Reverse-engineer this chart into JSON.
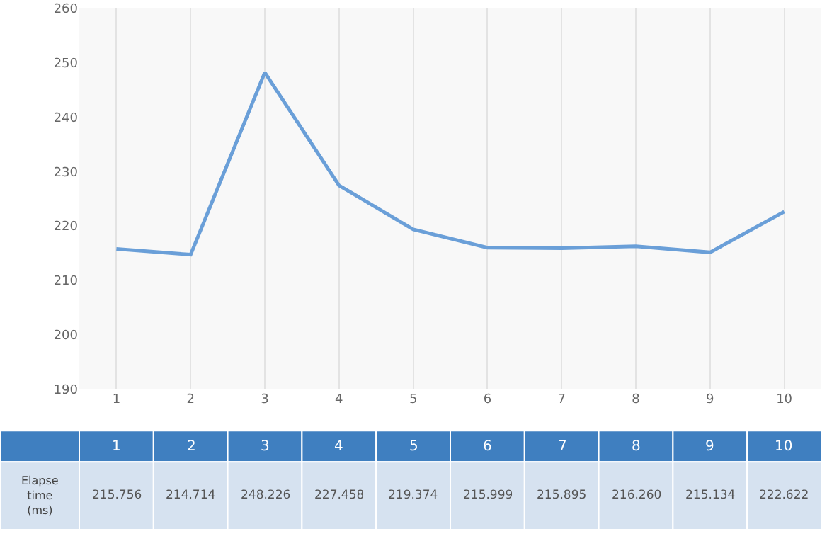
{
  "chart_data": {
    "type": "line",
    "categories": [
      "1",
      "2",
      "3",
      "4",
      "5",
      "6",
      "7",
      "8",
      "9",
      "10"
    ],
    "series": [
      {
        "name": "Elapse time (ms)",
        "color": "#6a9fd8",
        "values": [
          215.756,
          214.714,
          248.226,
          227.458,
          219.374,
          215.999,
          215.895,
          216.26,
          215.134,
          222.622
        ],
        "value_labels": [
          "215.756",
          "214.714",
          "248.226",
          "227.458",
          "219.374",
          "215.999",
          "215.895",
          "216.260",
          "215.134",
          "222.622"
        ]
      }
    ],
    "ylim": [
      190,
      260
    ],
    "yticks": [
      190,
      200,
      210,
      220,
      230,
      240,
      250,
      260
    ],
    "grid": "x",
    "marker": "none",
    "line_style": "solid",
    "legend": "bottom left"
  }
}
